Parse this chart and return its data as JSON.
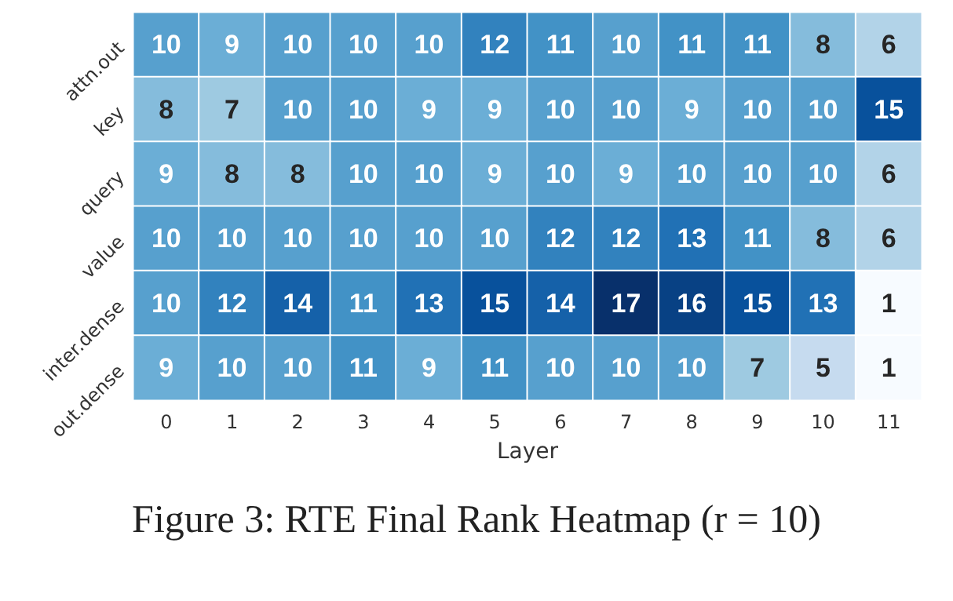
{
  "chart_data": {
    "type": "heatmap",
    "xlabel": "Layer",
    "categories": [
      "0",
      "1",
      "2",
      "3",
      "4",
      "5",
      "6",
      "7",
      "8",
      "9",
      "10",
      "11"
    ],
    "y_categories": [
      "attn.out",
      "key",
      "query",
      "value",
      "inter.dense",
      "out.dense"
    ],
    "cells": [
      [
        10,
        9,
        10,
        10,
        10,
        12,
        11,
        10,
        11,
        11,
        8,
        6
      ],
      [
        8,
        7,
        10,
        10,
        9,
        9,
        10,
        10,
        9,
        10,
        10,
        15
      ],
      [
        9,
        8,
        8,
        10,
        10,
        9,
        10,
        9,
        10,
        10,
        10,
        6
      ],
      [
        10,
        10,
        10,
        10,
        10,
        10,
        12,
        12,
        13,
        11,
        8,
        6
      ],
      [
        10,
        12,
        14,
        11,
        13,
        15,
        14,
        17,
        16,
        15,
        13,
        1
      ],
      [
        9,
        10,
        10,
        11,
        9,
        11,
        10,
        10,
        10,
        7,
        5,
        1
      ]
    ],
    "data_labels": true,
    "annotations": [
      "Figure 3: RTE Final Rank Heatmap (r = 10)"
    ]
  }
}
